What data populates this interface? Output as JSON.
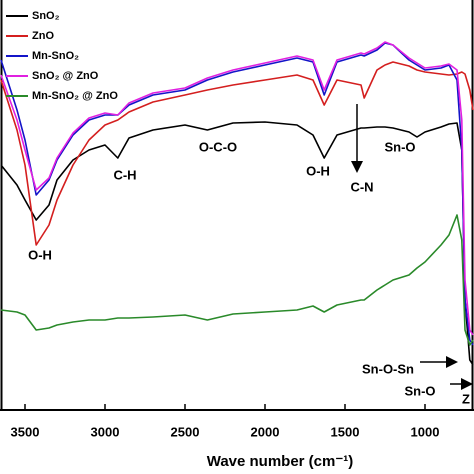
{
  "chart_data": {
    "type": "line",
    "x_label": "Wave number (cm⁻¹)",
    "x": [
      3650,
      3550,
      3500,
      3430,
      3350,
      3300,
      3200,
      3100,
      3000,
      2920,
      2850,
      2700,
      2500,
      2360,
      2200,
      2000,
      1800,
      1700,
      1630,
      1550,
      1400,
      1380,
      1300,
      1250,
      1200,
      1100,
      1050,
      1000,
      900,
      850,
      800,
      770,
      750,
      720,
      700
    ],
    "xlim": [
      3650,
      700
    ],
    "xticks": [
      3500,
      3000,
      2500,
      2000,
      1500,
      1000
    ],
    "ylim": [
      0,
      410
    ],
    "series": [
      {
        "name": "SnO₂",
        "color": "#000000",
        "values": [
          245,
          225,
          210,
          190,
          205,
          230,
          250,
          260,
          265,
          252,
          272,
          280,
          285,
          280,
          287,
          288,
          285,
          275,
          252,
          275,
          282,
          282,
          283,
          283,
          282,
          278,
          273,
          278,
          283,
          286,
          287,
          260,
          110,
          50,
          45
        ]
      },
      {
        "name": "ZnO",
        "color": "#d41f1f",
        "values": [
          330,
          280,
          245,
          165,
          185,
          210,
          245,
          270,
          285,
          290,
          298,
          308,
          315,
          320,
          325,
          330,
          335,
          330,
          305,
          330,
          325,
          312,
          340,
          345,
          348,
          344,
          340,
          338,
          336,
          335,
          336,
          338,
          336,
          320,
          300
        ]
      },
      {
        "name": "Mn-SnO₂",
        "color": "#1414c8",
        "values": [
          350,
          300,
          270,
          215,
          230,
          250,
          275,
          290,
          295,
          295,
          305,
          315,
          320,
          330,
          338,
          345,
          352,
          348,
          315,
          348,
          355,
          354,
          360,
          367,
          365,
          350,
          345,
          340,
          342,
          345,
          330,
          260,
          110,
          70,
          65
        ]
      },
      {
        "name": "SnO₂ @ ZnO",
        "color": "#e020e0",
        "values": [
          335,
          290,
          260,
          220,
          232,
          252,
          277,
          292,
          297,
          295,
          307,
          317,
          322,
          332,
          340,
          347,
          354,
          350,
          320,
          350,
          357,
          356,
          362,
          368,
          365,
          352,
          347,
          342,
          344,
          346,
          340,
          290,
          130,
          80,
          75
        ]
      },
      {
        "name": "Mn-SnO₂ @ ZnO",
        "color": "#2a8a2a",
        "values": [
          100,
          98,
          95,
          80,
          82,
          85,
          88,
          90,
          90,
          92,
          92,
          93,
          95,
          90,
          96,
          98,
          100,
          104,
          98,
          105,
          110,
          110,
          120,
          125,
          130,
          135,
          142,
          148,
          165,
          175,
          195,
          170,
          80,
          65,
          70
        ]
      }
    ],
    "annotations": [
      "O-H",
      "C-H",
      "O-C-O",
      "O-H",
      "C-N",
      "Sn-O",
      "Sn-O-Sn",
      "Sn-O",
      "Z"
    ]
  }
}
